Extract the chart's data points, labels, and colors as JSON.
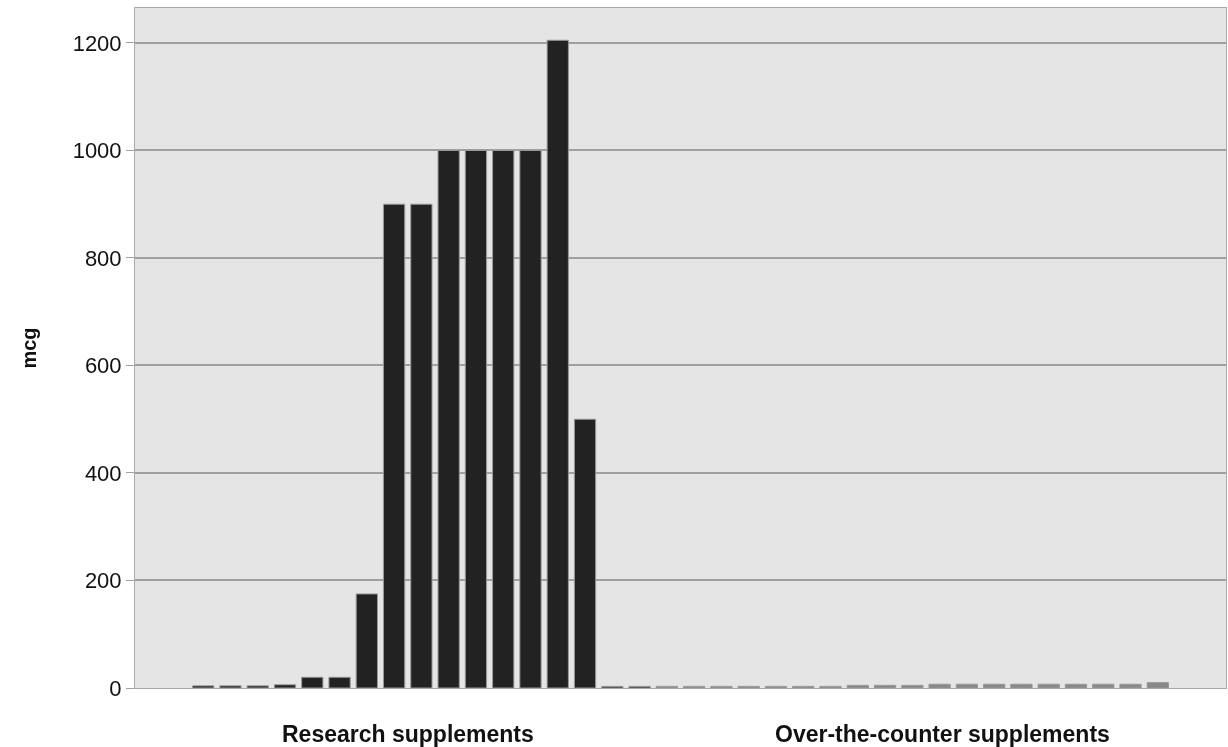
{
  "chart_data": {
    "type": "bar",
    "ylabel": "mcg",
    "categories": [
      null,
      null,
      null,
      null,
      null,
      null,
      null,
      null,
      null,
      null,
      null,
      null,
      null,
      null,
      null,
      null,
      null,
      null,
      null,
      null,
      null,
      null,
      null,
      null,
      null,
      null,
      null,
      null,
      null,
      null,
      null,
      null,
      null,
      null,
      null,
      null,
      null,
      null,
      null,
      null
    ],
    "values": [
      null,
      null,
      4,
      4,
      4,
      6,
      20,
      20,
      175,
      900,
      900,
      1000,
      1000,
      1000,
      1000,
      1205,
      500,
      3,
      3,
      3,
      3,
      3,
      3,
      3,
      3,
      3,
      5,
      5,
      5,
      7,
      7,
      7,
      7,
      7,
      7,
      7,
      7,
      10,
      null,
      null
    ],
    "colors": [
      "#222222",
      "#222222",
      "#222222",
      "#222222",
      "#222222",
      "#222222",
      "#222222",
      "#222222",
      "#222222",
      "#222222",
      "#222222",
      "#222222",
      "#222222",
      "#222222",
      "#222222",
      "#222222",
      "#222222",
      "#222222",
      "#222222",
      "#888888",
      "#888888",
      "#888888",
      "#888888",
      "#888888",
      "#888888",
      "#888888",
      "#888888",
      "#888888",
      "#888888",
      "#888888",
      "#888888",
      "#888888",
      "#888888",
      "#888888",
      "#888888",
      "#888888",
      "#888888",
      "#888888",
      "#888888",
      "#888888"
    ],
    "annotations": [
      "Research supplements",
      "Over-the-counter supplements"
    ],
    "ylim": [
      0,
      1265
    ],
    "yticks": [
      0,
      200,
      400,
      600,
      800,
      1000,
      1200
    ],
    "grid": "y",
    "tick_labels": "y"
  }
}
